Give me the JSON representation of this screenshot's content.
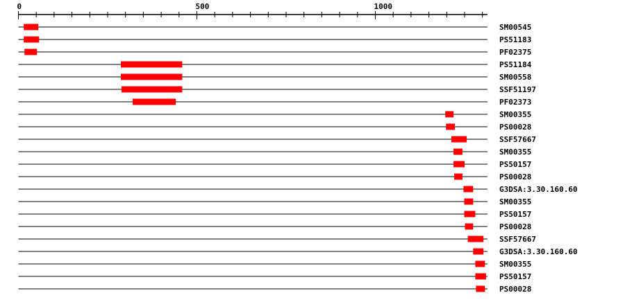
{
  "chart_data": {
    "type": "bar",
    "subtype": "horizontal-range",
    "x_range": [
      0,
      1314
    ],
    "x_ticks_labeled": [
      "0",
      "500",
      "1000"
    ],
    "x_tick_values": [
      0,
      500,
      1000
    ],
    "minor_tick_step": 50,
    "grid": false,
    "bar_color": "#ff0000",
    "line_color": "#000000",
    "tracks": [
      {
        "label": "SM00545",
        "start": 15,
        "end": 56
      },
      {
        "label": "PS51183",
        "start": 15,
        "end": 58
      },
      {
        "label": "PF02375",
        "start": 17,
        "end": 52
      },
      {
        "label": "PS51184",
        "start": 287,
        "end": 459
      },
      {
        "label": "SM00558",
        "start": 287,
        "end": 459
      },
      {
        "label": "SSF51197",
        "start": 289,
        "end": 459
      },
      {
        "label": "PF02373",
        "start": 320,
        "end": 441
      },
      {
        "label": "SM00355",
        "start": 1196,
        "end": 1219
      },
      {
        "label": "PS00028",
        "start": 1198,
        "end": 1223
      },
      {
        "label": "SSF57667",
        "start": 1213,
        "end": 1256
      },
      {
        "label": "SM00355",
        "start": 1219,
        "end": 1244
      },
      {
        "label": "PS50157",
        "start": 1219,
        "end": 1250
      },
      {
        "label": "PS00028",
        "start": 1221,
        "end": 1244
      },
      {
        "label": "G3DSA:3.30.160.60",
        "start": 1247,
        "end": 1274
      },
      {
        "label": "SM00355",
        "start": 1249,
        "end": 1274
      },
      {
        "label": "PS50157",
        "start": 1249,
        "end": 1280
      },
      {
        "label": "PS00028",
        "start": 1251,
        "end": 1274
      },
      {
        "label": "SSF57667",
        "start": 1259,
        "end": 1303
      },
      {
        "label": "G3DSA:3.30.160.60",
        "start": 1274,
        "end": 1303
      },
      {
        "label": "SM00355",
        "start": 1280,
        "end": 1307
      },
      {
        "label": "PS50157",
        "start": 1280,
        "end": 1310
      },
      {
        "label": "PS00028",
        "start": 1282,
        "end": 1307
      }
    ]
  }
}
